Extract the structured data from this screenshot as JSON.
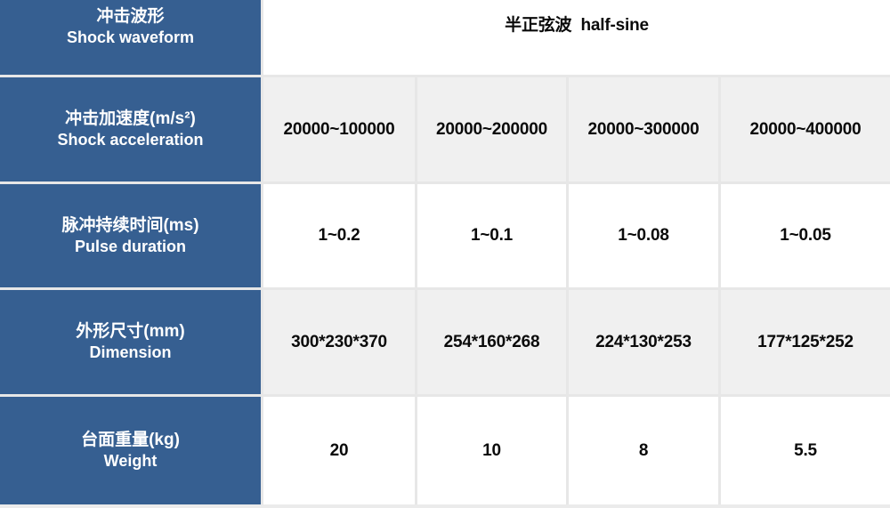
{
  "table": {
    "waveform_row": {
      "header_zh": "冲击波形",
      "header_en": "Shock waveform",
      "value": "半正弦波  half-sine"
    },
    "rows": [
      {
        "header_zh": "冲击加速度(m/s²)",
        "header_en": "Shock acceleration",
        "values": [
          "20000~100000",
          "20000~200000",
          "20000~300000",
          "20000~400000"
        ]
      },
      {
        "header_zh": "脉冲持续时间(ms)",
        "header_en": "Pulse duration",
        "values": [
          "1~0.2",
          "1~0.1",
          "1~0.08",
          "1~0.05"
        ]
      },
      {
        "header_zh": "外形尺寸(mm)",
        "header_en": "Dimension",
        "values": [
          "300*230*370",
          "254*160*268",
          "224*130*253",
          "177*125*252"
        ]
      },
      {
        "header_zh": "台面重量(kg)",
        "header_en": "Weight",
        "values": [
          "20",
          "10",
          "8",
          "5.5"
        ]
      }
    ],
    "colors": {
      "header_blue": "#365f91",
      "row_gray": "#f0f0f0",
      "row_white": "#ffffff",
      "grid_line": "#e7e7e7",
      "text_dark": "#0a0a0a",
      "text_light": "#ffffff"
    }
  }
}
